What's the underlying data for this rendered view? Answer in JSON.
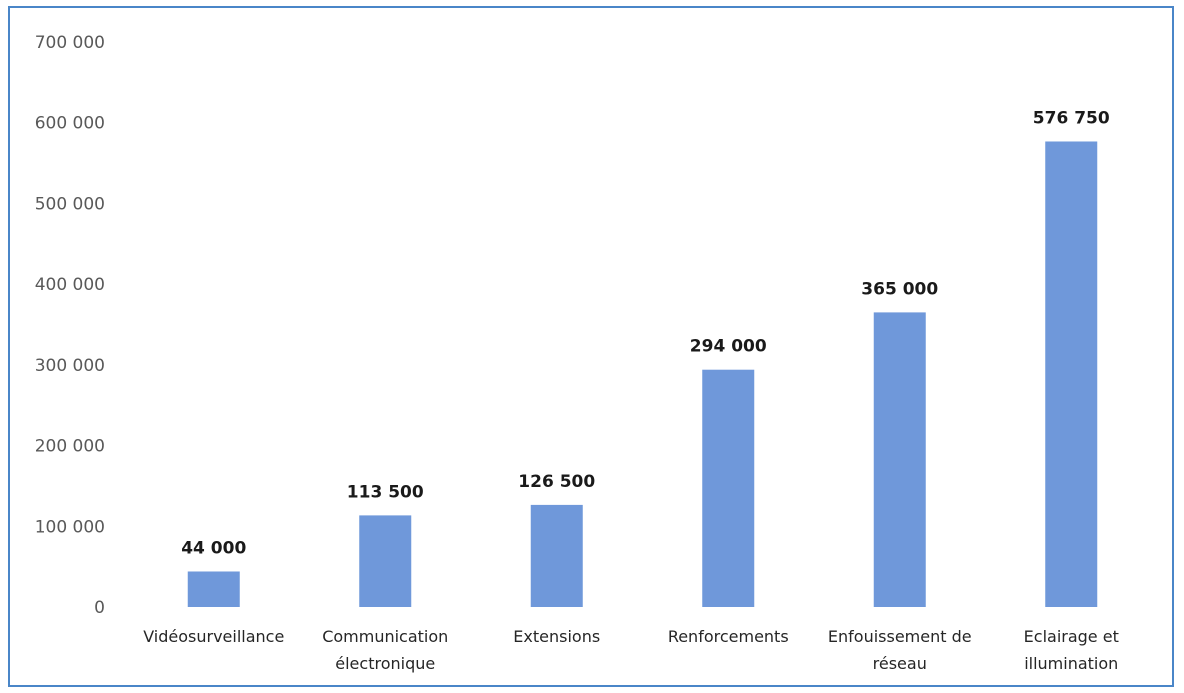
{
  "chart_data": {
    "type": "bar",
    "title": "",
    "xlabel": "",
    "ylabel": "",
    "categories": [
      [
        "Vidéosurveillance"
      ],
      [
        "Communication",
        "électronique"
      ],
      [
        "Extensions"
      ],
      [
        "Renforcements"
      ],
      [
        "Enfouissement de",
        "réseau"
      ],
      [
        "Eclairage et",
        "illumination"
      ]
    ],
    "values": [
      44000,
      113500,
      126500,
      294000,
      365000,
      576750
    ],
    "data_labels": [
      "44 000",
      "113 500",
      "126 500",
      "294 000",
      "365 000",
      "576 750"
    ],
    "yticks": [
      0,
      100000,
      200000,
      300000,
      400000,
      500000,
      600000,
      700000
    ],
    "ytick_labels": [
      "0",
      "100 000",
      "200 000",
      "300 000",
      "400 000",
      "500 000",
      "600 000",
      "700 000"
    ],
    "ylim": [
      0,
      700000
    ],
    "grid": false,
    "legend": "none",
    "bar_color": "#6f98da",
    "frame_color": "#4a86c8"
  }
}
